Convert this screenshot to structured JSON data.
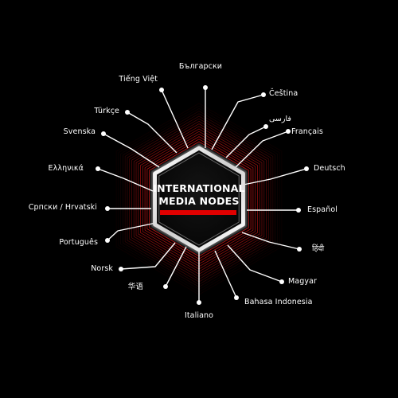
{
  "hub": {
    "title_line1": "INTERNATIONAL",
    "title_line2": "MEDIA NODES"
  },
  "nodes": [
    {
      "label": "Български"
    },
    {
      "label": "Čeština"
    },
    {
      "label": "فارسی"
    },
    {
      "label": "Français"
    },
    {
      "label": "Deutsch"
    },
    {
      "label": "Español"
    },
    {
      "label": "हिंदी"
    },
    {
      "label": "Magyar"
    },
    {
      "label": "Bahasa Indonesia"
    },
    {
      "label": "Italiano"
    },
    {
      "label": "华语"
    },
    {
      "label": "Norsk"
    },
    {
      "label": "Português"
    },
    {
      "label": "Српски / Hrvatski"
    },
    {
      "label": "Ελληνικά"
    },
    {
      "label": "Svenska"
    },
    {
      "label": "Türkçe"
    },
    {
      "label": "Tiếng Việt"
    }
  ],
  "colors": {
    "background": "#000000",
    "accent": "#e10000",
    "line": "#ffffff",
    "glow": "#ff1a1a"
  }
}
